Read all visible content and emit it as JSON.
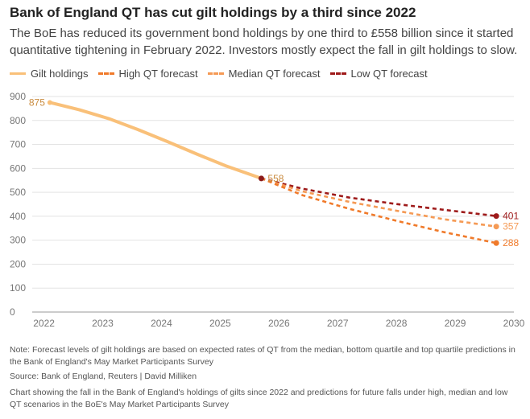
{
  "title": "Bank of England QT has cut gilt holdings by a third since 2022",
  "subtitle": "The BoE has reduced its government bond holdings by one third to £558 billion since it started quantitative tightening in February 2022. Investors mostly expect the fall in gilt holdings to slow.",
  "legend": [
    {
      "label": "Gilt holdings",
      "color": "#f9c079",
      "style": "solid"
    },
    {
      "label": "High QT forecast",
      "color": "#f07a2a",
      "style": "dashed"
    },
    {
      "label": "Median QT forecast",
      "color": "#f59a55",
      "style": "dashed"
    },
    {
      "label": "Low QT forecast",
      "color": "#9e1a1a",
      "style": "dashed"
    }
  ],
  "chart_data": {
    "type": "line",
    "title": "Bank of England QT has cut gilt holdings by a third since 2022",
    "xlabel": "",
    "ylabel": "",
    "xlim": [
      2021.8,
      2030
    ],
    "ylim": [
      0,
      900
    ],
    "grid": true,
    "x_ticks": [
      2022,
      2023,
      2024,
      2025,
      2026,
      2027,
      2028,
      2029,
      2030
    ],
    "y_ticks": [
      0,
      100,
      200,
      300,
      400,
      500,
      600,
      700,
      800,
      900
    ],
    "series": [
      {
        "name": "Gilt holdings",
        "color": "#f9c079",
        "style": "solid",
        "x": [
          2022.1,
          2022.6,
          2023.1,
          2023.6,
          2024.1,
          2024.6,
          2025.1,
          2025.7
        ],
        "y": [
          875,
          845,
          808,
          762,
          712,
          660,
          610,
          558
        ]
      },
      {
        "name": "High QT forecast",
        "color": "#f07a2a",
        "style": "dashed",
        "x": [
          2025.7,
          2026.4,
          2027.2,
          2028.0,
          2028.8,
          2029.7
        ],
        "y": [
          558,
          488,
          431,
          381,
          334,
          288
        ]
      },
      {
        "name": "Median QT forecast",
        "color": "#f59a55",
        "style": "dashed",
        "x": [
          2025.7,
          2026.4,
          2027.2,
          2028.0,
          2028.8,
          2029.7
        ],
        "y": [
          558,
          504,
          460,
          423,
          388,
          357
        ]
      },
      {
        "name": "Low QT forecast",
        "color": "#9e1a1a",
        "style": "dashed",
        "x": [
          2025.7,
          2026.4,
          2027.2,
          2028.0,
          2028.8,
          2029.7
        ],
        "y": [
          558,
          515,
          478,
          451,
          427,
          401
        ]
      }
    ],
    "annotations": [
      {
        "text": "875",
        "x": 2022.1,
        "y": 875,
        "series": "Gilt holdings",
        "side": "left"
      },
      {
        "text": "558",
        "x": 2025.7,
        "y": 558,
        "series": "Gilt holdings",
        "side": "right"
      },
      {
        "text": "401",
        "x": 2029.7,
        "y": 401,
        "series": "Low QT forecast",
        "side": "right"
      },
      {
        "text": "357",
        "x": 2029.7,
        "y": 357,
        "series": "Median QT forecast",
        "side": "right"
      },
      {
        "text": "288",
        "x": 2029.7,
        "y": 288,
        "series": "High QT forecast",
        "side": "right"
      }
    ]
  },
  "note": "Note: Forecast levels of gilt holdings are based on expected rates of QT from the median, bottom quartile and top quartile predictions in the Bank of England's May Market Participants Survey",
  "source": "Source: Bank of England, Reuters | David Milliken",
  "description": "Chart showing the fall in the Bank of England's holdings of gilts since 2022 and predictions for future falls under high, median and low QT scenarios in the BoE's May Market Participants Survey"
}
